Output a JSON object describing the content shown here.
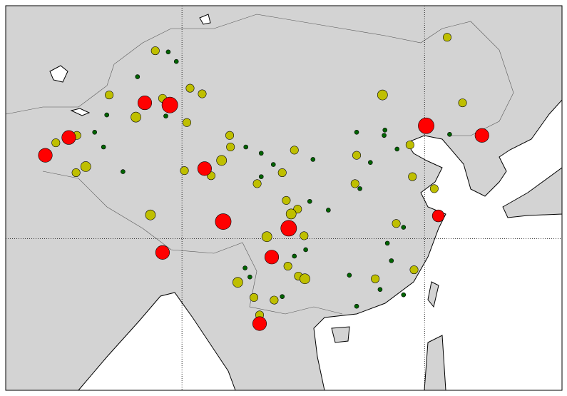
{
  "chart_data": {
    "type": "scatter",
    "lon_lim": [
      68.2,
      137.0
    ],
    "lat_lim": [
      12.6,
      51.5
    ],
    "meridians": [
      90,
      120
    ],
    "parallels": [
      30
    ],
    "land_color": "#d3d3d3",
    "series": [
      {
        "color": "#006400",
        "lon": [
          88.3,
          84.5,
          80.7,
          79.2,
          82.7,
          88.0,
          97.9,
          99.8,
          101.3,
          106.2,
          108.1,
          105.8,
          111.6,
          115.0,
          116.6,
          113.3,
          112.0,
          117.4,
          115.4,
          115.9,
          110.7,
          114.5,
          117.4,
          111.6,
          97.8,
          102.4,
          103.9,
          99.8,
          123.1,
          115.1,
          80.3,
          89.3,
          105.3,
          98.4
        ],
        "lat": [
          47.8,
          45.7,
          42.3,
          40.7,
          36.9,
          42.2,
          39.3,
          38.7,
          37.6,
          38.1,
          33.0,
          33.9,
          40.7,
          40.4,
          39.1,
          37.8,
          35.2,
          31.2,
          29.5,
          27.6,
          26.0,
          24.4,
          23.8,
          22.5,
          26.8,
          23.6,
          28.1,
          36.4,
          40.5,
          40.9,
          39.3,
          47.0,
          28.8,
          25.8
        ],
        "magnitude": [
          5.0,
          5.0,
          5.0,
          5.0,
          5.0,
          5.0,
          5.0,
          5.0,
          5.0,
          5.0,
          5.0,
          5.0,
          5.0,
          5.0,
          5.0,
          5.0,
          5.0,
          5.0,
          5.0,
          5.0,
          5.0,
          5.0,
          5.0,
          5.0,
          5.0,
          5.0,
          5.0,
          5.0,
          5.0,
          5.0,
          5.0,
          5.0,
          5.0,
          5.0
        ]
      },
      {
        "color": "#bfbf00",
        "lon": [
          122.8,
          114.8,
          124.7,
          86.7,
          91.0,
          92.5,
          81.0,
          84.3,
          87.6,
          90.6,
          77.0,
          74.4,
          78.1,
          76.9,
          86.1,
          90.3,
          95.9,
          96.0,
          94.9,
          93.6,
          99.3,
          103.9,
          102.4,
          102.9,
          104.3,
          100.5,
          105.1,
          103.1,
          104.4,
          96.9,
          105.2,
          98.9,
          101.4,
          113.9,
          118.7,
          121.2,
          118.5,
          111.4,
          111.6,
          118.2,
          116.5,
          99.6,
          103.5
        ],
        "lat": [
          49.0,
          44.1,
          43.4,
          47.9,
          44.7,
          44.2,
          44.1,
          42.1,
          43.8,
          41.6,
          40.4,
          39.7,
          37.4,
          36.8,
          32.5,
          37.0,
          40.4,
          39.3,
          38.0,
          36.5,
          35.7,
          39.0,
          36.8,
          34.0,
          33.1,
          30.2,
          30.3,
          27.0,
          25.9,
          25.2,
          25.6,
          23.5,
          23.2,
          25.6,
          26.6,
          35.2,
          36.4,
          35.7,
          38.5,
          39.5,
          31.6,
          21.5,
          32.6
        ],
        "magnitude": [
          6.0,
          6.5,
          6.0,
          6.0,
          6.0,
          6.0,
          6.0,
          6.5,
          6.0,
          6.0,
          6.0,
          6.0,
          6.5,
          6.0,
          6.5,
          6.0,
          6.0,
          6.0,
          6.5,
          6.0,
          6.0,
          6.0,
          6.0,
          6.0,
          6.0,
          6.5,
          6.0,
          6.0,
          6.0,
          6.5,
          6.5,
          6.0,
          6.0,
          6.0,
          6.0,
          6.0,
          6.0,
          6.0,
          6.0,
          6.0,
          6.0,
          6.0,
          6.5
        ]
      },
      {
        "color": "#ff0000",
        "lon": [
          88.5,
          85.4,
          76.0,
          73.1,
          92.8,
          95.1,
          103.2,
          87.6,
          101.1,
          99.6,
          121.7,
          120.2,
          127.1
        ],
        "lat": [
          43.2,
          43.4,
          40.2,
          38.5,
          37.2,
          31.8,
          31.1,
          28.5,
          28.0,
          20.5,
          32.4,
          41.3,
          40.4
        ],
        "magnitude": [
          8.0,
          7.5,
          7.5,
          7.5,
          7.5,
          8.0,
          8.0,
          7.5,
          7.5,
          7.5,
          7.0,
          8.0,
          7.5
        ]
      }
    ]
  }
}
